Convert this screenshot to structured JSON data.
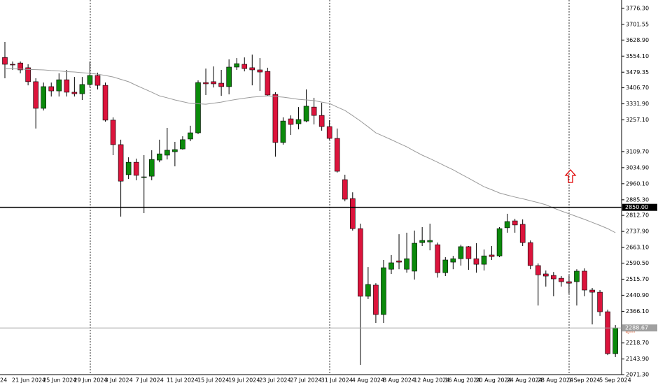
{
  "chart_data": {
    "type": "candlestick",
    "categories": [
      null,
      "21 Jun 2024",
      null,
      null,
      null,
      "25 Jun 2024",
      null,
      null,
      null,
      "29 Jun 2024",
      null,
      null,
      null,
      "3 Jul 2024",
      null,
      null,
      null,
      "7 Jul 2024",
      null,
      null,
      null,
      "11 Jul 2024",
      null,
      null,
      null,
      "15 Jul 2024",
      null,
      null,
      null,
      "19 Jul 2024",
      null,
      null,
      null,
      "23 Jul 2024",
      null,
      null,
      null,
      "27 Jul 2024",
      null,
      null,
      null,
      "31 Jul 2024",
      null,
      null,
      null,
      "4 Aug 2024",
      null,
      null,
      null,
      "8 Aug 2024",
      null,
      null,
      null,
      "12 Aug 2024",
      null,
      null,
      null,
      "16 Aug 2024",
      null,
      null,
      null,
      "20 Aug 2024",
      null,
      null,
      null,
      "24 Aug 2024",
      null,
      null,
      null,
      "28 Aug 2024",
      null,
      null,
      null,
      "1 Sep 2024",
      null,
      null,
      null,
      "5 Sep 2024",
      null,
      null
    ],
    "x_label_cut": "24",
    "open": [
      3548,
      3516,
      3522,
      3500,
      3435,
      3311,
      3412,
      3392,
      3444,
      3386,
      3379,
      3422,
      3464,
      3418,
      3256,
      3142,
      3002,
      3060,
      2989,
      2995,
      3070,
      3093,
      3109,
      3122,
      3168,
      3197,
      3431,
      3435,
      3428,
      3412,
      3503,
      3516,
      3500,
      3490,
      3483,
      3376,
      3152,
      3262,
      3239,
      3252,
      3317,
      3278,
      3226,
      3171,
      2979,
      2891,
      2751,
      2436,
      2488,
      2351,
      2562,
      2601,
      2562,
      2553,
      2686,
      2689,
      2676,
      2546,
      2595,
      2611,
      2667,
      2611,
      2585,
      2628,
      2624,
      2755,
      2787,
      2771,
      2686,
      2579,
      2540,
      2533,
      2520,
      2504,
      2504,
      2553,
      2465,
      2455,
      2364,
      2169
    ],
    "high": [
      3620,
      3529,
      3529,
      3516,
      3451,
      3431,
      3431,
      3474,
      3490,
      3457,
      3457,
      3529,
      3477,
      3431,
      3269,
      3165,
      3083,
      3077,
      3093,
      3116,
      3165,
      3220,
      3155,
      3181,
      3230,
      3441,
      3496,
      3506,
      3490,
      3539,
      3545,
      3548,
      3561,
      3545,
      3500,
      3386,
      3269,
      3278,
      3317,
      3399,
      3360,
      3337,
      3256,
      3217,
      3002,
      2920,
      2774,
      2572,
      2497,
      2605,
      2628,
      2725,
      2732,
      2742,
      2758,
      2774,
      2686,
      2618,
      2624,
      2676,
      2670,
      2683,
      2654,
      2670,
      2758,
      2820,
      2797,
      2794,
      2696,
      2589,
      2556,
      2549,
      2530,
      2533,
      2562,
      2566,
      2475,
      2465,
      2374,
      2302
    ],
    "low": [
      3451,
      3490,
      3474,
      3418,
      3217,
      3301,
      3366,
      3366,
      3366,
      3366,
      3350,
      3408,
      3399,
      3249,
      3093,
      2807,
      2982,
      2976,
      2823,
      2976,
      3060,
      3073,
      3041,
      3119,
      3158,
      3191,
      3373,
      3408,
      3369,
      3376,
      3490,
      3483,
      3418,
      3392,
      3369,
      3086,
      3142,
      3187,
      3213,
      3246,
      3236,
      3207,
      3165,
      3012,
      2878,
      2742,
      2117,
      2423,
      2312,
      2312,
      2540,
      2562,
      2546,
      2514,
      2670,
      2650,
      2523,
      2530,
      2562,
      2579,
      2559,
      2546,
      2556,
      2605,
      2618,
      2732,
      2732,
      2670,
      2562,
      2393,
      2481,
      2436,
      2481,
      2449,
      2393,
      2436,
      2305,
      2345,
      2162,
      2153
    ],
    "close": [
      3516,
      3513,
      3490,
      3435,
      3311,
      3412,
      3392,
      3444,
      3386,
      3379,
      3422,
      3464,
      3418,
      3256,
      3142,
      2972,
      3060,
      2999,
      2992,
      3073,
      3099,
      3116,
      3119,
      3165,
      3197,
      3431,
      3425,
      3425,
      3412,
      3503,
      3519,
      3496,
      3490,
      3480,
      3373,
      3152,
      3252,
      3236,
      3259,
      3321,
      3278,
      3226,
      3171,
      3018,
      2888,
      2751,
      2436,
      2491,
      2351,
      2569,
      2592,
      2595,
      2611,
      2683,
      2696,
      2696,
      2546,
      2605,
      2611,
      2667,
      2611,
      2585,
      2624,
      2621,
      2751,
      2784,
      2768,
      2686,
      2579,
      2536,
      2530,
      2517,
      2504,
      2497,
      2553,
      2465,
      2455,
      2364,
      2169,
      2288.67
    ],
    "ma": [
      3496,
      3495,
      3494,
      3492,
      3491,
      3490,
      3487,
      3485,
      3482,
      3480,
      3477,
      3474,
      3470,
      3464,
      3457,
      3446,
      3435,
      3418,
      3402,
      3386,
      3369,
      3360,
      3350,
      3342,
      3334,
      3332,
      3330,
      3335,
      3340,
      3347,
      3353,
      3358,
      3363,
      3366,
      3369,
      3366,
      3363,
      3358,
      3353,
      3350,
      3347,
      3340,
      3334,
      3317,
      3301,
      3277,
      3252,
      3225,
      3197,
      3181,
      3165,
      3148,
      3132,
      3112,
      3093,
      3077,
      3060,
      3042,
      3025,
      3005,
      2986,
      2966,
      2946,
      2932,
      2917,
      2907,
      2898,
      2890,
      2881,
      2872,
      2862,
      2847,
      2833,
      2820,
      2807,
      2794,
      2780,
      2766,
      2751,
      2732
    ],
    "up_color": "#0b8a0b",
    "down_color": "#dc143c",
    "ma_color": "#9a9a9a",
    "ylim": [
      2032.3,
      3815.3
    ],
    "yticks": [
      {
        "value": 3776.3,
        "label": "3776.30"
      },
      3701.55,
      {
        "value": 3628.9,
        "label": "3628.90"
      },
      {
        "value": 3554.1,
        "label": "3554.10"
      },
      3479.35,
      {
        "value": 3406.7,
        "label": "3406.70"
      },
      {
        "value": 3331.9,
        "label": "3331.90"
      },
      {
        "value": 3257.1,
        "label": "3257.10"
      },
      {
        "value": 3109.7,
        "label": "3109.70"
      },
      {
        "value": 3034.9,
        "label": "3034.90"
      },
      {
        "value": 2960.1,
        "label": "2960.10"
      },
      {
        "value": 2885.3,
        "label": "2885.30"
      },
      {
        "value": 2812.7,
        "label": "2812.70"
      },
      {
        "value": 2737.9,
        "label": "2737.90"
      },
      {
        "value": 2663.1,
        "label": "2663.10"
      },
      {
        "value": 2590.5,
        "label": "2590.50"
      },
      {
        "value": 2515.7,
        "label": "2515.70"
      },
      {
        "value": 2440.9,
        "label": "2440.90"
      },
      {
        "value": 2366.1,
        "label": "2366.10"
      },
      {
        "value": 2218.7,
        "label": "2218.70"
      },
      {
        "value": 2143.9,
        "label": "2143.90"
      },
      {
        "value": 2071.3,
        "label": "2071.30"
      }
    ],
    "levels": [
      {
        "value": 2850,
        "label": "2850.00",
        "color": "#000000"
      },
      {
        "value": 2288.67,
        "color": "#a0a0a0"
      }
    ]
  }
}
